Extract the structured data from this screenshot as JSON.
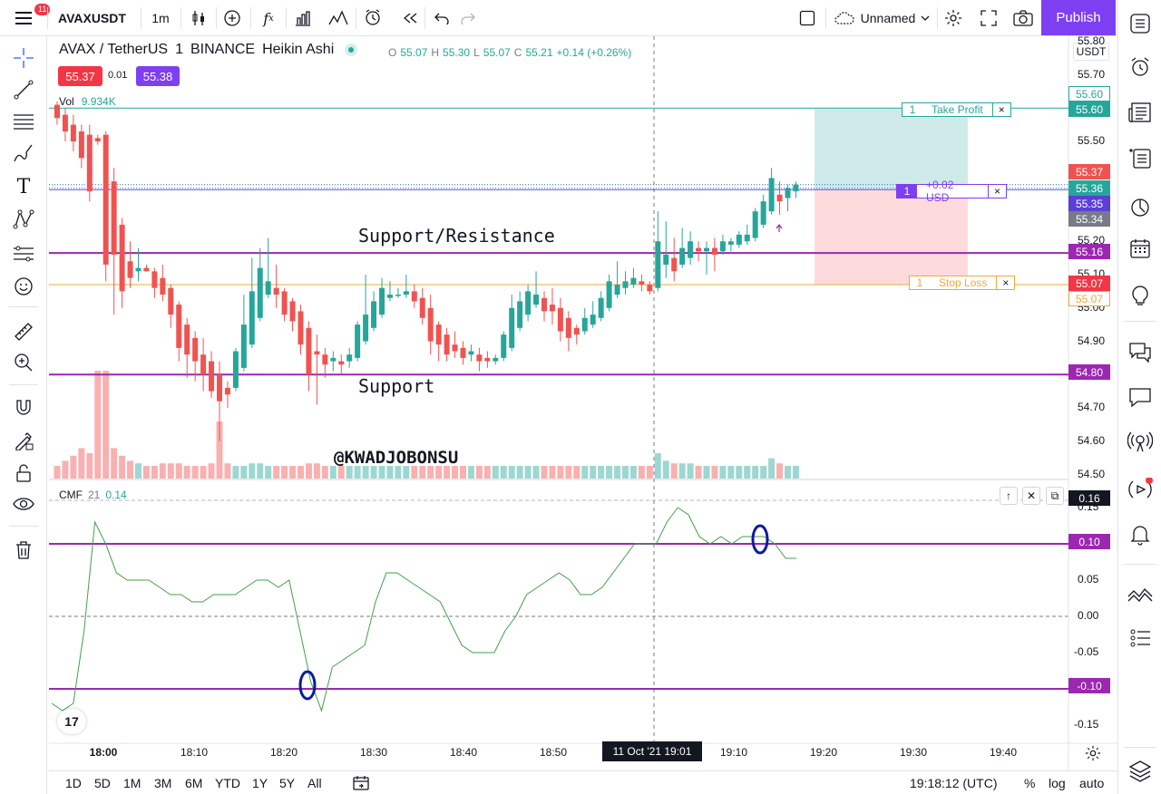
{
  "header": {
    "menu_badge": "11",
    "symbol": "AVAXUSDT",
    "interval": "1m",
    "layout_name": "Unnamed",
    "publish_label": "Publish",
    "icons": [
      "menu-icon",
      "candles-icon",
      "plus-circle-icon",
      "fx-icon",
      "bar-chart-icon",
      "line-chart-icon",
      "alert-icon",
      "replay-icon",
      "undo-icon",
      "redo-icon",
      "square-icon",
      "cloud-icon",
      "gear-icon",
      "fullscreen-icon",
      "camera-icon"
    ]
  },
  "legend": {
    "title": "AVAX / TetherUS",
    "interval": "1",
    "exchange": "BINANCE",
    "chart_style": "Heikin Ashi",
    "o_key": "O",
    "o": "55.07",
    "h_key": "H",
    "h": "55.30",
    "l_key": "L",
    "l": "55.07",
    "c_key": "C",
    "c": "55.21",
    "change": "+0.14 (+0.26%)",
    "sell_price": "55.37",
    "spread": "0.01",
    "buy_price": "55.38"
  },
  "volume": {
    "label": "Vol",
    "value": "9.934K"
  },
  "cmf": {
    "label": "CMF",
    "period": "21",
    "value": "0.14"
  },
  "annotations": {
    "support_resistance": "Support/Resistance",
    "support": "Support",
    "watermark": "@KWADJOBONSU"
  },
  "orders": {
    "take_profit": {
      "qty": "1",
      "label": "Take Profit",
      "close": "×"
    },
    "position": {
      "qty": "1",
      "label": "+0.02 USD",
      "close": "×"
    },
    "stop_loss": {
      "qty": "1",
      "label": "Stop Loss",
      "close": "×"
    }
  },
  "price_axis": {
    "currency": "USDT",
    "ticks": [
      "55.80",
      "55.70",
      "55.50",
      "55.20",
      "55.10",
      "55.00",
      "54.90",
      "54.70",
      "54.60",
      "54.50"
    ],
    "labels": [
      {
        "text": "55.60",
        "color": "#ffffff",
        "text_color": "#26a69a",
        "border": "#26a69a"
      },
      {
        "text": "55.60",
        "color": "#26a69a"
      },
      {
        "text": "55.37",
        "color": "#ef5350"
      },
      {
        "text": "55.36",
        "color": "#26a69a"
      },
      {
        "text": "55.35",
        "color": "#5b3fd6"
      },
      {
        "text": "55.34",
        "color": "#787b86"
      },
      {
        "text": "55.16",
        "color": "#9c27b0"
      },
      {
        "text": "55.07",
        "color": "#f23645"
      },
      {
        "text": "55.07",
        "color": "#ffffff",
        "text_color": "#f2a93b",
        "border": "#f2a93b"
      },
      {
        "text": "54.80",
        "color": "#9c27b0"
      }
    ]
  },
  "cmf_axis": {
    "ticks": [
      "0.15",
      "0.05",
      "0.00",
      "-0.05",
      "-0.15"
    ],
    "labels": [
      {
        "text": "0.16",
        "color": "#131722"
      },
      {
        "text": "0.10",
        "color": "#9c27b0"
      },
      {
        "text": "-0.10",
        "color": "#9c27b0"
      }
    ]
  },
  "time_axis": {
    "ticks": [
      "18:00",
      "18:10",
      "18:20",
      "18:30",
      "18:40",
      "18:50",
      "19:10",
      "19:20",
      "19:30",
      "19:40"
    ],
    "cursor": "11 Oct '21   19:01"
  },
  "bottom": {
    "ranges": [
      "1D",
      "5D",
      "1M",
      "3M",
      "6M",
      "YTD",
      "1Y",
      "5Y",
      "All"
    ],
    "clock": "19:18:12 (UTC)",
    "percent": "%",
    "log": "log",
    "auto": "auto"
  },
  "tv_logo": "17",
  "chart_data": {
    "type": "candlestick",
    "style": "Heikin Ashi",
    "candles": [
      {
        "o": 55.61,
        "h": 55.62,
        "l": 55.55,
        "c": 55.57
      },
      {
        "o": 55.58,
        "h": 55.6,
        "l": 55.5,
        "c": 55.53
      },
      {
        "o": 55.55,
        "h": 55.58,
        "l": 55.47,
        "c": 55.5
      },
      {
        "o": 55.53,
        "h": 55.55,
        "l": 55.42,
        "c": 55.45
      },
      {
        "o": 55.52,
        "h": 55.55,
        "l": 55.32,
        "c": 55.35
      },
      {
        "o": 55.51,
        "h": 55.52,
        "l": 55.49,
        "c": 55.5
      },
      {
        "o": 55.52,
        "h": 55.53,
        "l": 55.08,
        "c": 55.13
      },
      {
        "o": 55.38,
        "h": 55.42,
        "l": 54.98,
        "c": 55.16
      },
      {
        "o": 55.25,
        "h": 55.27,
        "l": 55.0,
        "c": 55.05
      },
      {
        "o": 55.14,
        "h": 55.2,
        "l": 55.06,
        "c": 55.09
      },
      {
        "o": 55.11,
        "h": 55.18,
        "l": 55.08,
        "c": 55.12
      },
      {
        "o": 55.12,
        "h": 55.13,
        "l": 55.11,
        "c": 55.11
      },
      {
        "o": 55.11,
        "h": 55.12,
        "l": 55.03,
        "c": 55.06
      },
      {
        "o": 55.09,
        "h": 55.13,
        "l": 55.02,
        "c": 55.04
      },
      {
        "o": 55.06,
        "h": 55.07,
        "l": 54.94,
        "c": 54.98
      },
      {
        "o": 55.01,
        "h": 55.02,
        "l": 54.84,
        "c": 54.88
      },
      {
        "o": 54.95,
        "h": 54.97,
        "l": 54.79,
        "c": 54.86
      },
      {
        "o": 54.91,
        "h": 54.93,
        "l": 54.78,
        "c": 54.84
      },
      {
        "o": 54.86,
        "h": 54.91,
        "l": 54.75,
        "c": 54.8
      },
      {
        "o": 54.84,
        "h": 54.87,
        "l": 54.73,
        "c": 54.75
      },
      {
        "o": 54.8,
        "h": 54.84,
        "l": 54.6,
        "c": 54.72
      },
      {
        "o": 54.76,
        "h": 54.78,
        "l": 54.7,
        "c": 54.74
      },
      {
        "o": 54.76,
        "h": 54.88,
        "l": 54.75,
        "c": 54.87
      },
      {
        "o": 54.82,
        "h": 55.04,
        "l": 54.81,
        "c": 54.95
      },
      {
        "o": 54.89,
        "h": 55.15,
        "l": 54.88,
        "c": 55.05
      },
      {
        "o": 54.97,
        "h": 55.18,
        "l": 54.96,
        "c": 55.12
      },
      {
        "o": 55.04,
        "h": 55.21,
        "l": 55.03,
        "c": 55.08
      },
      {
        "o": 55.06,
        "h": 55.13,
        "l": 55.0,
        "c": 55.04
      },
      {
        "o": 55.05,
        "h": 55.06,
        "l": 54.96,
        "c": 54.98
      },
      {
        "o": 55.02,
        "h": 55.03,
        "l": 54.93,
        "c": 54.96
      },
      {
        "o": 54.99,
        "h": 55.01,
        "l": 54.86,
        "c": 54.89
      },
      {
        "o": 54.94,
        "h": 54.96,
        "l": 54.75,
        "c": 54.8
      },
      {
        "o": 54.87,
        "h": 54.92,
        "l": 54.71,
        "c": 54.86
      },
      {
        "o": 54.86,
        "h": 54.88,
        "l": 54.79,
        "c": 54.83
      },
      {
        "o": 54.84,
        "h": 54.87,
        "l": 54.81,
        "c": 54.85
      },
      {
        "o": 54.84,
        "h": 54.86,
        "l": 54.8,
        "c": 54.83
      },
      {
        "o": 54.84,
        "h": 54.88,
        "l": 54.82,
        "c": 54.86
      },
      {
        "o": 54.85,
        "h": 54.96,
        "l": 54.84,
        "c": 54.95
      },
      {
        "o": 54.9,
        "h": 55.1,
        "l": 54.89,
        "c": 54.98
      },
      {
        "o": 54.94,
        "h": 55.05,
        "l": 54.93,
        "c": 55.02
      },
      {
        "o": 54.98,
        "h": 55.09,
        "l": 54.97,
        "c": 55.06
      },
      {
        "o": 55.03,
        "h": 55.08,
        "l": 55.02,
        "c": 55.04
      },
      {
        "o": 55.04,
        "h": 55.06,
        "l": 55.03,
        "c": 55.04
      },
      {
        "o": 55.04,
        "h": 55.1,
        "l": 55.03,
        "c": 55.05
      },
      {
        "o": 55.05,
        "h": 55.07,
        "l": 55.0,
        "c": 55.02
      },
      {
        "o": 55.03,
        "h": 55.06,
        "l": 54.95,
        "c": 54.97
      },
      {
        "o": 55.0,
        "h": 55.04,
        "l": 54.86,
        "c": 54.9
      },
      {
        "o": 54.95,
        "h": 54.96,
        "l": 54.84,
        "c": 54.89
      },
      {
        "o": 54.92,
        "h": 54.94,
        "l": 54.84,
        "c": 54.86
      },
      {
        "o": 54.89,
        "h": 54.93,
        "l": 54.85,
        "c": 54.87
      },
      {
        "o": 54.88,
        "h": 54.9,
        "l": 54.83,
        "c": 54.85
      },
      {
        "o": 54.86,
        "h": 54.89,
        "l": 54.84,
        "c": 54.87
      },
      {
        "o": 54.86,
        "h": 54.88,
        "l": 54.81,
        "c": 54.84
      },
      {
        "o": 54.85,
        "h": 54.87,
        "l": 54.82,
        "c": 54.84
      },
      {
        "o": 54.84,
        "h": 54.86,
        "l": 54.83,
        "c": 54.85
      },
      {
        "o": 54.85,
        "h": 54.93,
        "l": 54.84,
        "c": 54.92
      },
      {
        "o": 54.88,
        "h": 55.04,
        "l": 54.87,
        "c": 55.0
      },
      {
        "o": 54.94,
        "h": 55.05,
        "l": 54.93,
        "c": 55.02
      },
      {
        "o": 54.98,
        "h": 55.07,
        "l": 54.96,
        "c": 55.05
      },
      {
        "o": 55.01,
        "h": 55.11,
        "l": 55.0,
        "c": 55.04
      },
      {
        "o": 55.03,
        "h": 55.05,
        "l": 54.96,
        "c": 54.99
      },
      {
        "o": 55.01,
        "h": 55.06,
        "l": 54.95,
        "c": 54.99
      },
      {
        "o": 55.0,
        "h": 55.03,
        "l": 54.9,
        "c": 54.93
      },
      {
        "o": 54.97,
        "h": 54.99,
        "l": 54.87,
        "c": 54.91
      },
      {
        "o": 54.94,
        "h": 54.95,
        "l": 54.89,
        "c": 54.92
      },
      {
        "o": 54.93,
        "h": 55.0,
        "l": 54.92,
        "c": 54.97
      },
      {
        "o": 54.95,
        "h": 55.02,
        "l": 54.94,
        "c": 54.98
      },
      {
        "o": 54.97,
        "h": 55.05,
        "l": 54.96,
        "c": 55.03
      },
      {
        "o": 55.0,
        "h": 55.1,
        "l": 54.99,
        "c": 55.08
      },
      {
        "o": 55.04,
        "h": 55.14,
        "l": 55.03,
        "c": 55.07
      },
      {
        "o": 55.06,
        "h": 55.11,
        "l": 55.04,
        "c": 55.08
      },
      {
        "o": 55.07,
        "h": 55.12,
        "l": 55.06,
        "c": 55.09
      },
      {
        "o": 55.08,
        "h": 55.1,
        "l": 55.05,
        "c": 55.07
      },
      {
        "o": 55.07,
        "h": 55.08,
        "l": 55.04,
        "c": 55.05
      },
      {
        "o": 55.06,
        "h": 55.29,
        "l": 55.05,
        "c": 55.2
      },
      {
        "o": 55.13,
        "h": 55.26,
        "l": 55.09,
        "c": 55.16
      },
      {
        "o": 55.15,
        "h": 55.21,
        "l": 55.08,
        "c": 55.11
      },
      {
        "o": 55.13,
        "h": 55.24,
        "l": 55.12,
        "c": 55.18
      },
      {
        "o": 55.15,
        "h": 55.23,
        "l": 55.13,
        "c": 55.2
      },
      {
        "o": 55.18,
        "h": 55.2,
        "l": 55.14,
        "c": 55.17
      },
      {
        "o": 55.17,
        "h": 55.2,
        "l": 55.1,
        "c": 55.18
      },
      {
        "o": 55.18,
        "h": 55.21,
        "l": 55.11,
        "c": 55.16
      },
      {
        "o": 55.17,
        "h": 55.22,
        "l": 55.16,
        "c": 55.2
      },
      {
        "o": 55.19,
        "h": 55.21,
        "l": 55.17,
        "c": 55.2
      },
      {
        "o": 55.19,
        "h": 55.23,
        "l": 55.18,
        "c": 55.22
      },
      {
        "o": 55.2,
        "h": 55.25,
        "l": 55.19,
        "c": 55.22
      },
      {
        "o": 55.21,
        "h": 55.3,
        "l": 55.2,
        "c": 55.29
      },
      {
        "o": 55.25,
        "h": 55.34,
        "l": 55.24,
        "c": 55.32
      },
      {
        "o": 55.29,
        "h": 55.42,
        "l": 55.28,
        "c": 55.39
      },
      {
        "o": 55.34,
        "h": 55.38,
        "l": 55.28,
        "c": 55.32
      },
      {
        "o": 55.33,
        "h": 55.37,
        "l": 55.29,
        "c": 55.36
      },
      {
        "o": 55.35,
        "h": 55.38,
        "l": 55.33,
        "c": 55.37
      }
    ],
    "volume": [
      0.1,
      0.14,
      0.18,
      0.24,
      0.2,
      0.85,
      0.85,
      0.24,
      0.18,
      0.14,
      0.12,
      0.1,
      0.1,
      0.12,
      0.12,
      0.12,
      0.1,
      0.1,
      0.1,
      0.12,
      0.45,
      0.12,
      0.1,
      0.1,
      0.12,
      0.12,
      0.1,
      0.1,
      0.1,
      0.1,
      0.1,
      0.12,
      0.12,
      0.1,
      0.1,
      0.1,
      0.1,
      0.1,
      0.1,
      0.1,
      0.1,
      0.1,
      0.1,
      0.1,
      0.1,
      0.1,
      0.1,
      0.1,
      0.1,
      0.1,
      0.1,
      0.1,
      0.1,
      0.1,
      0.1,
      0.1,
      0.1,
      0.1,
      0.1,
      0.1,
      0.1,
      0.1,
      0.1,
      0.1,
      0.1,
      0.1,
      0.1,
      0.1,
      0.1,
      0.1,
      0.1,
      0.1,
      0.1,
      0.1,
      0.2,
      0.14,
      0.12,
      0.12,
      0.12,
      0.1,
      0.1,
      0.1,
      0.1,
      0.1,
      0.1,
      0.1,
      0.1,
      0.1,
      0.16,
      0.12,
      0.1,
      0.1
    ],
    "cmf": [
      -0.12,
      -0.13,
      -0.12,
      -0.02,
      0.13,
      0.1,
      0.06,
      0.05,
      0.05,
      0.05,
      0.04,
      0.03,
      0.03,
      0.02,
      0.02,
      0.03,
      0.03,
      0.03,
      0.04,
      0.05,
      0.05,
      0.04,
      0.05,
      -0.02,
      -0.09,
      -0.13,
      -0.07,
      -0.06,
      -0.05,
      -0.04,
      0.02,
      0.06,
      0.06,
      0.05,
      0.04,
      0.03,
      0.02,
      -0.01,
      -0.04,
      -0.05,
      -0.05,
      -0.05,
      -0.02,
      0.0,
      0.03,
      0.04,
      0.05,
      0.06,
      0.05,
      0.03,
      0.03,
      0.04,
      0.06,
      0.08,
      0.1,
      0.1,
      0.1,
      0.13,
      0.15,
      0.14,
      0.11,
      0.1,
      0.11,
      0.1,
      0.11,
      0.11,
      0.11,
      0.1,
      0.08,
      0.08
    ]
  }
}
